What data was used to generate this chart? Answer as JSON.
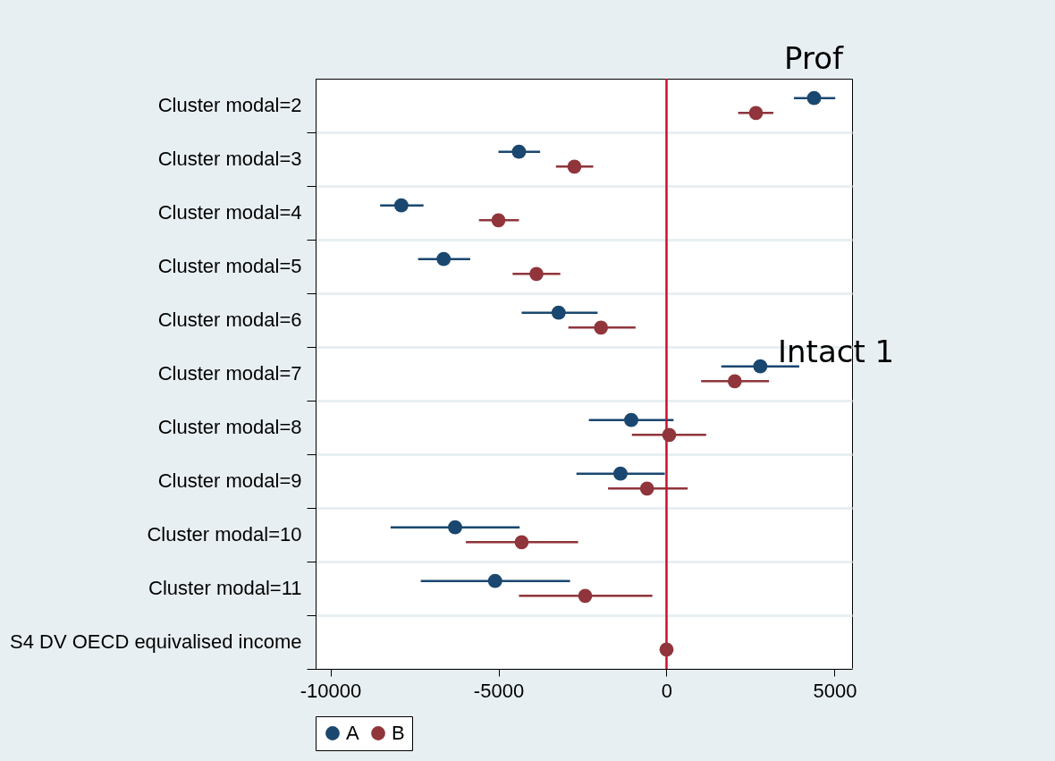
{
  "chart_data": {
    "type": "scatter",
    "orientation": "horizontal",
    "categories": [
      "Cluster modal=2",
      "Cluster modal=3",
      "Cluster modal=4",
      "Cluster modal=5",
      "Cluster modal=6",
      "Cluster modal=7",
      "Cluster modal=8",
      "Cluster modal=9",
      "Cluster modal=10",
      "Cluster modal=11",
      "S4 DV OECD equivalised income"
    ],
    "series": [
      {
        "name": "A",
        "color": "#1a476f",
        "values": [
          4390,
          -4390,
          -7890,
          -6630,
          -3210,
          2790,
          -1050,
          -1370,
          -6290,
          -5100,
          null
        ],
        "errors": [
          [
            3790,
            5020
          ],
          [
            -5000,
            -3760
          ],
          [
            -8520,
            -7230
          ],
          [
            -7390,
            -5840
          ],
          [
            -4310,
            -2050
          ],
          [
            1630,
            3950
          ],
          [
            -2310,
            210
          ],
          [
            -2680,
            -50
          ],
          [
            -8210,
            -4370
          ],
          [
            -7310,
            -2870
          ],
          null
        ]
      },
      {
        "name": "B",
        "color": "#90353b",
        "values": [
          2660,
          -2740,
          -5000,
          -3870,
          -1950,
          2030,
          80,
          -580,
          -4310,
          -2420,
          0
        ],
        "errors": [
          [
            2130,
            3180
          ],
          [
            -3290,
            -2180
          ],
          [
            -5580,
            -4390
          ],
          [
            -4580,
            -3160
          ],
          [
            -2920,
            -920
          ],
          [
            1030,
            3050
          ],
          [
            -1030,
            1180
          ],
          [
            -1740,
            630
          ],
          [
            -5970,
            -2630
          ],
          [
            -4390,
            -420
          ],
          null
        ]
      }
    ],
    "xlim": [
      -10440,
      5520
    ],
    "xticks": [
      {
        "value": -10000,
        "label": "-10000"
      },
      {
        "value": -5000,
        "label": "-5000"
      },
      0,
      {
        "value": 5000,
        "label": "5000"
      }
    ],
    "ref_lines": [
      {
        "axis": "x",
        "value": 0,
        "color": "#c8102e"
      }
    ],
    "annotations": [
      "Prof",
      "Intact 1"
    ],
    "grid": "y",
    "legend": "bottom",
    "marker": "circle"
  }
}
